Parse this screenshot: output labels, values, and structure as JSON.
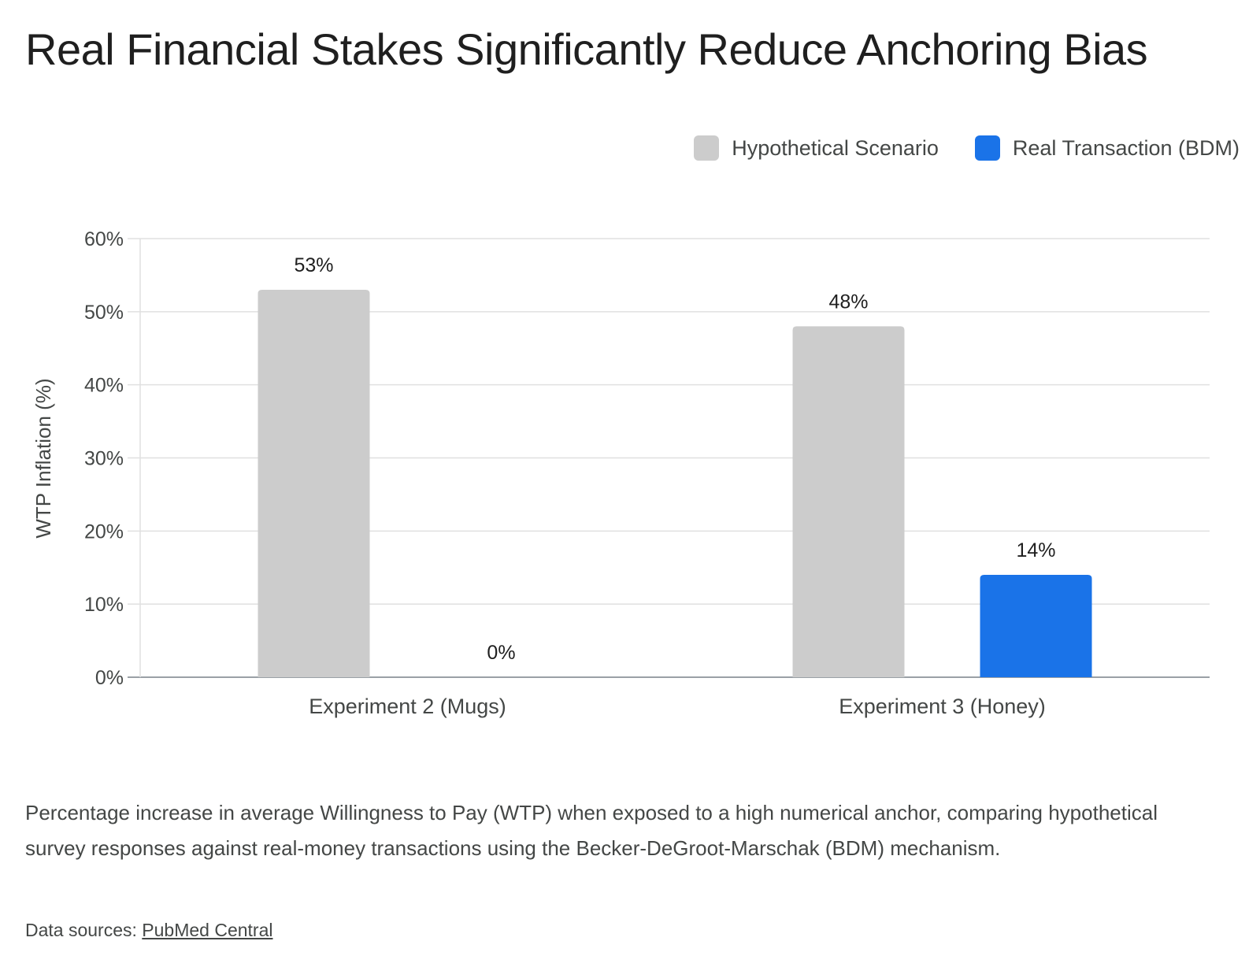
{
  "chart_data": {
    "type": "bar",
    "title": "Real Financial Stakes Significantly Reduce Anchoring Bias",
    "categories": [
      "Experiment 2 (Mugs)",
      "Experiment 3 (Honey)"
    ],
    "series": [
      {
        "name": "Hypothetical Scenario",
        "values": [
          53,
          48
        ],
        "labels": [
          "53%",
          "48%"
        ],
        "color": "#cccccc"
      },
      {
        "name": "Real Transaction (BDM)",
        "values": [
          0,
          14
        ],
        "labels": [
          "0%",
          "14%"
        ],
        "color": "#1a73e8"
      }
    ],
    "xlabel": "",
    "ylabel": "WTP Inflation (%)",
    "ylim": [
      0,
      60
    ],
    "yticks": [
      0,
      10,
      20,
      30,
      40,
      50,
      60
    ],
    "ytick_labels": [
      "0%",
      "10%",
      "20%",
      "30%",
      "40%",
      "50%",
      "60%"
    ],
    "grid": true,
    "legend_position": "top-right"
  },
  "caption": "Percentage increase in average Willingness to Pay (WTP) when exposed to a high numerical anchor, comparing hypothetical survey responses against real-money transactions using the Becker-DeGroot-Marschak (BDM) mechanism.",
  "sources": {
    "prefix": "Data sources: ",
    "link_text": "PubMed Central"
  }
}
